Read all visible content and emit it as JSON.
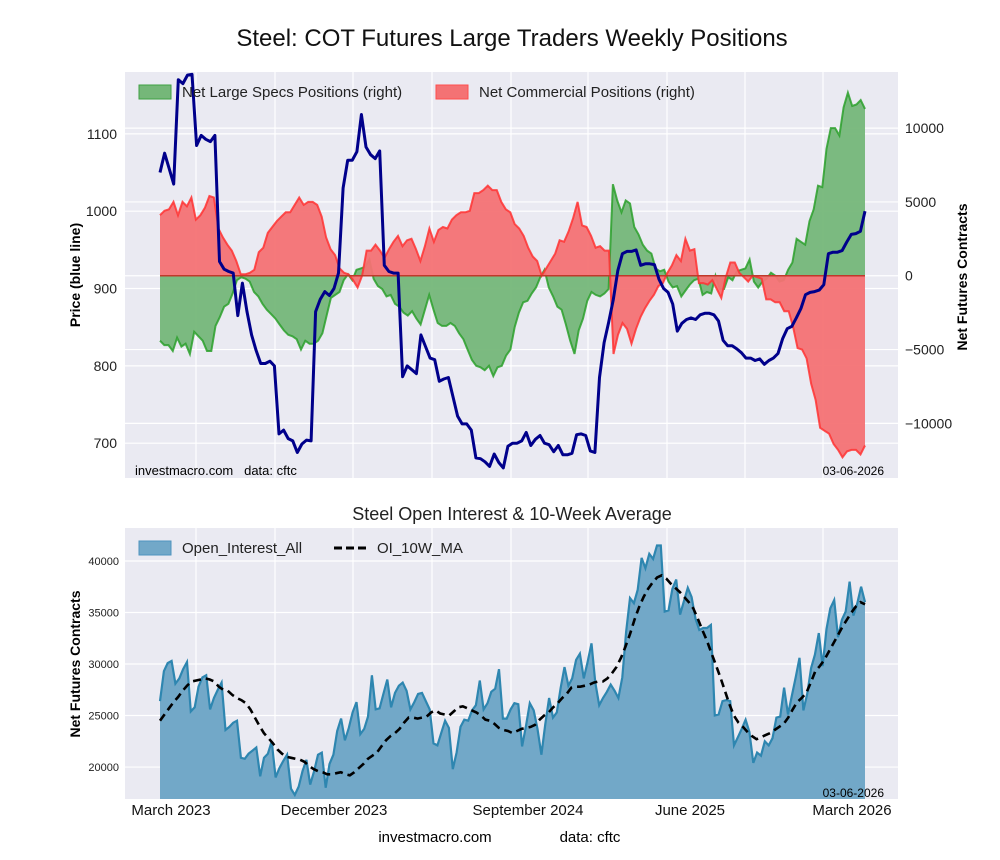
{
  "figure": {
    "title": "Steel: COT Futures Large Traders Weekly Positions",
    "footer_site": "investmacro.com",
    "footer_source": "data: cftc"
  },
  "chart_data": [
    {
      "type": "area",
      "title": "Steel: COT Futures Large Traders Weekly Positions",
      "ylabel_left": "Price (blue line)",
      "ylabel_right": "Net Futures Contracts",
      "ylim_left": [
        655,
        1180
      ],
      "ylim_right": [
        -13700,
        13800
      ],
      "yticks_left": [
        700,
        800,
        900,
        1000,
        1100
      ],
      "yticks_right": [
        -10000,
        -5000,
        0,
        5000,
        10000
      ],
      "ytick_labels_right": [
        "−10000",
        "−5000",
        "0",
        "5000",
        "10000"
      ],
      "grid": true,
      "legend_placement": "top-left",
      "watermark": "investmacro.com   data: cftc",
      "last_date_label": "03-06-2026",
      "x_start": "2023-01-03",
      "x_end": "2026-03-06",
      "frequency": "weekly",
      "series": [
        {
          "name": "Net Large Specs Positions (right)",
          "kind": "area",
          "color": "#2ca02c",
          "fill": "#75b779",
          "values": [
            -4400,
            -4700,
            -4700,
            -5100,
            -4200,
            -4800,
            -4600,
            -5300,
            -3800,
            -4100,
            -4400,
            -5100,
            -5100,
            -3400,
            -2800,
            -2100,
            -1900,
            -1200,
            -300,
            -100,
            -200,
            -400,
            -1100,
            -1400,
            -1900,
            -2300,
            -2600,
            -2900,
            -3300,
            -3700,
            -4000,
            -4100,
            -4300,
            -5000,
            -4400,
            -4600,
            -4600,
            -4400,
            -3900,
            -2700,
            -1500,
            -1300,
            -1100,
            -300,
            100,
            -300,
            400,
            500,
            600,
            1100,
            -200,
            -700,
            -900,
            -1400,
            -1300,
            -1900,
            -2100,
            -2500,
            -2700,
            -2400,
            -2900,
            -3300,
            -2300,
            -1300,
            -2300,
            -3200,
            -3400,
            -3400,
            -3200,
            -3400,
            -3900,
            -4300,
            -5000,
            -5700,
            -6100,
            -6200,
            -6400,
            -6100,
            -6800,
            -6200,
            -6100,
            -5400,
            -5000,
            -3500,
            -2500,
            -1800,
            -1700,
            -1200,
            -800,
            -100,
            400,
            -800,
            -1400,
            -2100,
            -2300,
            -3300,
            -4400,
            -5300,
            -3700,
            -2900,
            -1700,
            -1100,
            -1300,
            -1400,
            -1200,
            -900,
            6200,
            5100,
            4300,
            5100,
            4900,
            3300,
            2800,
            2100,
            1700,
            1500,
            500,
            300,
            400,
            -400,
            -800,
            -700,
            -1400,
            -1000,
            -600,
            -300,
            -200,
            -1300,
            -1100,
            -1200,
            0,
            -900,
            -900,
            -100,
            -300,
            300,
            400,
            500,
            1100,
            -400,
            -800,
            -400,
            -200,
            200,
            0,
            -400,
            -300,
            400,
            900,
            2500,
            2300,
            2100,
            3700,
            4500,
            6100,
            6000,
            8600,
            10000,
            10000,
            9500,
            11400,
            12400,
            11500,
            11600,
            11900,
            11300
          ]
        },
        {
          "name": "Net Commercial Positions (right)",
          "kind": "area",
          "color": "#ff3333",
          "fill": "#f47274",
          "values": [
            4100,
            4400,
            4500,
            5000,
            4100,
            5000,
            4700,
            5300,
            3800,
            4100,
            4600,
            5400,
            5300,
            3200,
            2600,
            2100,
            1700,
            1000,
            100,
            100,
            200,
            400,
            1600,
            1900,
            2900,
            3300,
            3700,
            4000,
            4300,
            4300,
            4800,
            5300,
            4800,
            5000,
            5000,
            4800,
            4000,
            2600,
            1800,
            1400,
            500,
            200,
            100,
            -300,
            -800,
            0,
            1700,
            1700,
            2100,
            1700,
            1200,
            1800,
            2300,
            2700,
            2000,
            2400,
            2500,
            1800,
            1000,
            2000,
            3200,
            2300,
            3100,
            3300,
            3200,
            3800,
            4100,
            4300,
            4300,
            4400,
            5600,
            5600,
            5800,
            6100,
            5800,
            5800,
            5000,
            4500,
            4300,
            3500,
            3200,
            2700,
            1900,
            1300,
            1000,
            0,
            500,
            1000,
            1500,
            2400,
            2300,
            3000,
            3900,
            5000,
            3400,
            3300,
            2700,
            1900,
            2000,
            1700,
            1700,
            -5300,
            -4000,
            -3200,
            -3600,
            -4600,
            -3600,
            -2800,
            -2200,
            -1700,
            -1300,
            -700,
            -500,
            200,
            700,
            1400,
            1000,
            2500,
            1700,
            1800,
            -500,
            -500,
            -600,
            -300,
            -900,
            -1500,
            -100,
            900,
            900,
            200,
            -100,
            -400,
            0,
            -100,
            -200,
            -1600,
            -1600,
            -1800,
            -1800,
            -2400,
            -2400,
            -3500,
            -4900,
            -5000,
            -5600,
            -7300,
            -8400,
            -10300,
            -10500,
            -10700,
            -11400,
            -11800,
            -12300,
            -11900,
            -11800,
            -11800,
            -12100,
            -11500
          ]
        },
        {
          "name": "Price (blue line)",
          "kind": "line",
          "axis": "left",
          "color": "#00008b",
          "values": [
            1050,
            1075,
            1055,
            1035,
            1170,
            1165,
            1176,
            1177,
            1085,
            1098,
            1093,
            1090,
            1098,
            935,
            925,
            922,
            920,
            865,
            907,
            870,
            840,
            820,
            803,
            803,
            806,
            800,
            712,
            717,
            706,
            703,
            688,
            699,
            704,
            703,
            870,
            886,
            896,
            891,
            900,
            920,
            1030,
            1066,
            1066,
            1077,
            1125,
            1083,
            1073,
            1068,
            1078,
            930,
            922,
            920,
            920,
            786,
            800,
            795,
            790,
            840,
            825,
            810,
            808,
            780,
            783,
            785,
            760,
            735,
            725,
            725,
            717,
            681,
            680,
            676,
            670,
            686,
            675,
            668,
            696,
            700,
            700,
            703,
            714,
            697,
            705,
            710,
            700,
            698,
            689,
            697,
            685,
            685,
            687,
            711,
            712,
            710,
            690,
            688,
            785,
            830,
            856,
            885,
            923,
            945,
            948,
            948,
            950,
            930,
            932,
            932,
            931,
            912,
            900,
            895,
            880,
            845,
            855,
            860,
            862,
            860,
            866,
            868,
            868,
            866,
            858,
            833,
            826,
            826,
            822,
            817,
            810,
            810,
            807,
            809,
            802,
            807,
            810,
            816,
            835,
            848,
            851,
            862,
            874,
            892,
            895,
            896,
            898,
            905,
            945,
            947,
            947,
            949,
            960,
            970,
            971,
            974,
            1000
          ]
        }
      ]
    },
    {
      "type": "area",
      "title": "Steel Open Interest & 10-Week Average",
      "ylabel": "Net Futures Contracts",
      "ylim": [
        16900,
        43200
      ],
      "yticks": [
        20000,
        25000,
        30000,
        35000,
        40000
      ],
      "grid": true,
      "legend_placement": "top-left",
      "last_date_label": "03-06-2026",
      "xtick_labels": [
        "March 2023",
        "December 2023",
        "September 2024",
        "June 2025",
        "March 2026"
      ],
      "x_start": "2023-01-03",
      "x_end": "2026-03-06",
      "frequency": "weekly",
      "series": [
        {
          "name": "Open_Interest_All",
          "kind": "area",
          "color": "#2e86b0",
          "fill": "#72a8c8",
          "values": [
            26400,
            29300,
            30100,
            30300,
            28100,
            28600,
            29500,
            30200,
            25400,
            25800,
            27800,
            28700,
            28900,
            25600,
            26700,
            27500,
            28200,
            23600,
            23900,
            24300,
            24500,
            20900,
            20800,
            21300,
            21600,
            21900,
            19100,
            20900,
            21300,
            22500,
            19000,
            19900,
            20600,
            21200,
            17900,
            17300,
            18100,
            19600,
            20700,
            18300,
            19600,
            21200,
            21400,
            18000,
            20300,
            21200,
            23500,
            24700,
            22600,
            23800,
            25300,
            26300,
            23200,
            23700,
            24900,
            28900,
            25600,
            25700,
            27100,
            28500,
            25800,
            27200,
            27900,
            28200,
            27400,
            25600,
            26300,
            27100,
            27200,
            26400,
            25600,
            22300,
            22100,
            23300,
            24500,
            23800,
            19800,
            21400,
            23900,
            24600,
            24500,
            25500,
            26000,
            28400,
            25600,
            26200,
            27300,
            27600,
            29500,
            24700,
            24700,
            25600,
            26200,
            26100,
            22000,
            24000,
            26200,
            25500,
            23700,
            21200,
            24100,
            26700,
            24800,
            25300,
            27700,
            29700,
            27900,
            28600,
            30400,
            31000,
            28600,
            30200,
            32000,
            28200,
            26000,
            26700,
            27300,
            28000,
            27400,
            26700,
            28700,
            33100,
            36400,
            35900,
            37200,
            40300,
            39300,
            40700,
            40200,
            41500,
            41500,
            35100,
            35200,
            37300,
            38200,
            34800,
            36100,
            37400,
            36500,
            34400,
            33300,
            33500,
            33500,
            33800,
            25000,
            25100,
            26400,
            26500,
            26400,
            22100,
            22900,
            23700,
            24600,
            23400,
            20400,
            21400,
            21100,
            22500,
            22100,
            22800,
            24800,
            24900,
            27700,
            25100,
            26900,
            28700,
            30600,
            25500,
            27100,
            29600,
            30900,
            33000,
            29800,
            33400,
            35400,
            36200,
            32600,
            34300,
            35100,
            38000,
            34700,
            35900,
            37500,
            36000
          ]
        },
        {
          "name": "OI_10W_MA",
          "kind": "line",
          "style": "dashed",
          "color": "#000000",
          "values": [
            24500,
            25100,
            25700,
            26300,
            26800,
            27400,
            27900,
            28300,
            28400,
            28500,
            28600,
            28500,
            28300,
            27800,
            27500,
            27400,
            27000,
            26700,
            26500,
            26200,
            25600,
            24800,
            24000,
            23300,
            22800,
            22300,
            21700,
            21300,
            21000,
            20900,
            20800,
            20700,
            20500,
            20100,
            19800,
            19600,
            19500,
            19300,
            19300,
            19400,
            19500,
            19300,
            19200,
            19500,
            19900,
            20300,
            20800,
            21100,
            21400,
            22000,
            22600,
            23000,
            23300,
            23700,
            24300,
            24800,
            24800,
            24700,
            24800,
            24900,
            25300,
            25500,
            25200,
            25100,
            25000,
            25400,
            25800,
            25900,
            25700,
            25500,
            25300,
            25000,
            24600,
            24500,
            24200,
            23800,
            23600,
            23500,
            23300,
            23500,
            23700,
            23800,
            23900,
            24100,
            24600,
            25000,
            25300,
            25800,
            26200,
            26700,
            27100,
            27700,
            27800,
            27800,
            27900,
            28000,
            28200,
            28300,
            28300,
            28600,
            29100,
            29700,
            30600,
            31700,
            32900,
            34300,
            35500,
            36500,
            37300,
            37900,
            38400,
            38600,
            38300,
            37800,
            37400,
            37000,
            36500,
            36000,
            35400,
            34400,
            33300,
            32300,
            31100,
            29900,
            28700,
            27400,
            26100,
            25000,
            24300,
            23900,
            23400,
            23000,
            22700,
            22900,
            23100,
            23300,
            23600,
            23900,
            24200,
            24800,
            25600,
            26300,
            26700,
            27200,
            28200,
            29300,
            29800,
            30400,
            31200,
            32000,
            32800,
            33600,
            34300,
            35000,
            35600,
            36000,
            35800
          ]
        }
      ]
    }
  ]
}
